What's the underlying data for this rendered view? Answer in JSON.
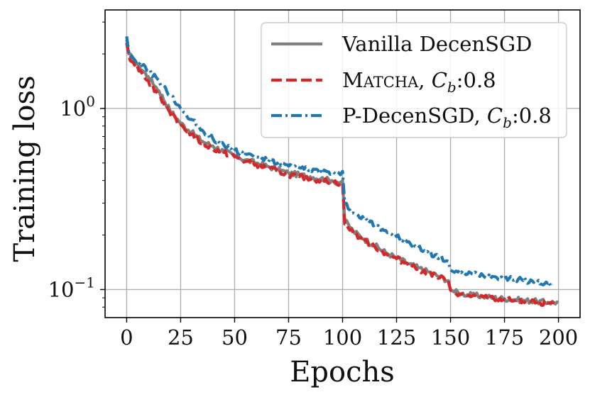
{
  "chart_data": {
    "type": "line",
    "xlabel": "Epochs",
    "ylabel": "Training loss",
    "yscale": "log",
    "xlim": [
      -10,
      210
    ],
    "ylim": [
      0.07,
      3.5
    ],
    "grid": true,
    "legend_position": "top-right",
    "x_ticks": [
      0,
      25,
      50,
      75,
      100,
      125,
      150,
      175,
      200
    ],
    "x_tick_labels": [
      "0",
      "25",
      "50",
      "75",
      "100",
      "125",
      "150",
      "175",
      "200"
    ],
    "y_ticks": [
      {
        "value": 1.0,
        "base": "10",
        "exp": "0"
      },
      {
        "value": 0.1,
        "base": "10",
        "exp": "−1"
      }
    ],
    "series": [
      {
        "name": "Vanilla DecenSGD",
        "color": "#808080",
        "style": "solid",
        "x": [
          0,
          1,
          3,
          5,
          10,
          15,
          20,
          25,
          30,
          35,
          40,
          45,
          50,
          55,
          60,
          65,
          70,
          75,
          80,
          85,
          90,
          95,
          99,
          100,
          101,
          105,
          110,
          115,
          120,
          125,
          130,
          135,
          140,
          145,
          149,
          150,
          151,
          155,
          160,
          165,
          170,
          175,
          180,
          185,
          190,
          195,
          200
        ],
        "y": [
          2.4,
          2.0,
          1.85,
          1.75,
          1.5,
          1.25,
          0.98,
          0.83,
          0.74,
          0.66,
          0.62,
          0.58,
          0.55,
          0.52,
          0.5,
          0.48,
          0.46,
          0.44,
          0.43,
          0.42,
          0.41,
          0.4,
          0.39,
          0.4,
          0.24,
          0.21,
          0.19,
          0.175,
          0.16,
          0.15,
          0.14,
          0.132,
          0.125,
          0.118,
          0.112,
          0.1,
          0.098,
          0.095,
          0.093,
          0.092,
          0.09,
          0.089,
          0.088,
          0.087,
          0.086,
          0.085,
          0.085
        ]
      },
      {
        "name": "Matcha, Cb:0.8",
        "label_parts": {
          "m": "M",
          "atcha": "ATCHA",
          "sep": ", ",
          "c": "C",
          "sub": "b",
          "val": ":0.8"
        },
        "color": "#d62728",
        "style": "dashed",
        "x": [
          0,
          1,
          3,
          5,
          10,
          15,
          20,
          25,
          30,
          35,
          40,
          45,
          50,
          55,
          60,
          65,
          70,
          75,
          80,
          85,
          90,
          95,
          99,
          100,
          101,
          105,
          110,
          115,
          120,
          125,
          130,
          135,
          140,
          145,
          149,
          150,
          151,
          155,
          160,
          165,
          170,
          175,
          180,
          185,
          190,
          195,
          198
        ],
        "y": [
          2.3,
          1.95,
          1.8,
          1.7,
          1.42,
          1.18,
          0.95,
          0.81,
          0.72,
          0.64,
          0.6,
          0.57,
          0.54,
          0.51,
          0.49,
          0.47,
          0.45,
          0.43,
          0.42,
          0.41,
          0.4,
          0.395,
          0.385,
          0.39,
          0.23,
          0.205,
          0.186,
          0.172,
          0.158,
          0.148,
          0.139,
          0.13,
          0.123,
          0.116,
          0.111,
          0.099,
          0.097,
          0.094,
          0.092,
          0.091,
          0.089,
          0.088,
          0.087,
          0.086,
          0.085,
          0.084,
          0.084
        ]
      },
      {
        "name": "P-DecenSGD, Cb:0.8",
        "label_parts": {
          "m": "P-DecenSGD",
          "sep": ", ",
          "c": "C",
          "sub": "b",
          "val": ":0.8"
        },
        "color": "#1f77b4",
        "style": "dashdot",
        "x": [
          0,
          1,
          3,
          5,
          10,
          15,
          20,
          25,
          30,
          35,
          40,
          45,
          50,
          55,
          60,
          65,
          70,
          75,
          80,
          85,
          90,
          95,
          99,
          100,
          101,
          105,
          110,
          115,
          120,
          125,
          130,
          135,
          140,
          145,
          149,
          150,
          151,
          155,
          160,
          165,
          170,
          175,
          180,
          185,
          190,
          195,
          197
        ],
        "y": [
          2.5,
          2.05,
          1.9,
          1.82,
          1.62,
          1.42,
          1.18,
          1.0,
          0.87,
          0.76,
          0.68,
          0.63,
          0.59,
          0.56,
          0.54,
          0.52,
          0.5,
          0.48,
          0.47,
          0.46,
          0.45,
          0.44,
          0.43,
          0.45,
          0.3,
          0.265,
          0.245,
          0.228,
          0.212,
          0.196,
          0.183,
          0.17,
          0.16,
          0.15,
          0.143,
          0.128,
          0.126,
          0.124,
          0.122,
          0.12,
          0.118,
          0.116,
          0.114,
          0.112,
          0.11,
          0.108,
          0.107
        ]
      }
    ]
  }
}
